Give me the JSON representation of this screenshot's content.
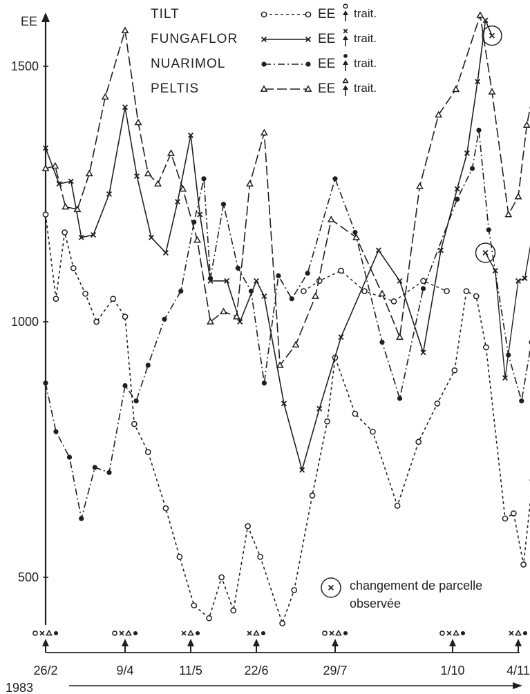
{
  "chart_data": {
    "type": "line",
    "ylabel": "EE",
    "year_label": "1983",
    "yticks": [
      500,
      1000,
      1500
    ],
    "ylim": [
      400,
      1600
    ],
    "x_categories": [
      "26/2",
      "9/4",
      "11/5",
      "22/6",
      "29/7",
      "1/10",
      "4/11"
    ],
    "legend": {
      "ee_label": "EE",
      "trait_label": "trait."
    },
    "series": [
      {
        "name": "TILT",
        "marker": "circle",
        "dash": "4 4",
        "values": [
          {
            "x": 0.0,
            "y": 1210
          },
          {
            "x": 0.13,
            "y": 1045
          },
          {
            "x": 0.24,
            "y": 1175
          },
          {
            "x": 0.35,
            "y": 1105
          },
          {
            "x": 0.5,
            "y": 1055
          },
          {
            "x": 0.64,
            "y": 1000
          },
          {
            "x": 0.85,
            "y": 1045
          },
          {
            "x": 1.0,
            "y": 1010
          },
          {
            "x": 1.14,
            "y": 800
          },
          {
            "x": 1.35,
            "y": 745
          },
          {
            "x": 1.62,
            "y": 635
          },
          {
            "x": 1.83,
            "y": 540
          },
          {
            "x": 2.05,
            "y": 445
          },
          {
            "x": 2.28,
            "y": 420
          },
          {
            "x": 2.47,
            "y": 500
          },
          {
            "x": 2.65,
            "y": 435
          },
          {
            "x": 2.87,
            "y": 600
          },
          {
            "x": 3.05,
            "y": 540
          },
          {
            "x": 3.33,
            "y": 410
          },
          {
            "x": 3.48,
            "y": 475
          },
          {
            "x": 3.71,
            "y": 660
          },
          {
            "x": 3.9,
            "y": 805
          },
          {
            "x": 4.0,
            "y": 930
          },
          {
            "x": 4.17,
            "y": 820
          },
          {
            "x": 4.32,
            "y": 785
          },
          {
            "x": 4.53,
            "y": 640
          },
          {
            "x": 4.71,
            "y": 765
          },
          {
            "x": 4.87,
            "y": 840
          },
          {
            "x": 5.03,
            "y": 905
          },
          {
            "x": 5.21,
            "y": 1060
          },
          {
            "x": 5.36,
            "y": 1050
          },
          {
            "x": 5.51,
            "y": 950
          },
          {
            "x": 5.8,
            "y": 615
          },
          {
            "x": 5.93,
            "y": 625
          },
          {
            "x": 6.08,
            "y": 525
          },
          {
            "x": 6.22,
            "y": 690
          }
        ],
        "extra_values": [
          {
            "x": 3.6,
            "y": 1060
          },
          {
            "x": 3.8,
            "y": 1080
          },
          {
            "x": 4.05,
            "y": 1100
          },
          {
            "x": 4.25,
            "y": 1060
          },
          {
            "x": 4.5,
            "y": 1040
          },
          {
            "x": 4.75,
            "y": 1080
          },
          {
            "x": 4.95,
            "y": 1060
          }
        ]
      },
      {
        "name": "FUNGAFLOR",
        "marker": "cross",
        "dash": "",
        "values": [
          {
            "x": 0.0,
            "y": 1340
          },
          {
            "x": 0.17,
            "y": 1270
          },
          {
            "x": 0.32,
            "y": 1275
          },
          {
            "x": 0.45,
            "y": 1165
          },
          {
            "x": 0.6,
            "y": 1170
          },
          {
            "x": 0.8,
            "y": 1250
          },
          {
            "x": 1.0,
            "y": 1420
          },
          {
            "x": 1.18,
            "y": 1285
          },
          {
            "x": 1.4,
            "y": 1165
          },
          {
            "x": 1.62,
            "y": 1135
          },
          {
            "x": 1.8,
            "y": 1235
          },
          {
            "x": 2.0,
            "y": 1365
          },
          {
            "x": 2.14,
            "y": 1210
          },
          {
            "x": 2.3,
            "y": 1080
          },
          {
            "x": 2.55,
            "y": 1080
          },
          {
            "x": 2.75,
            "y": 1000
          },
          {
            "x": 3.0,
            "y": 1080
          },
          {
            "x": 3.1,
            "y": 1050
          },
          {
            "x": 3.35,
            "y": 840
          },
          {
            "x": 3.58,
            "y": 710
          },
          {
            "x": 3.8,
            "y": 830
          },
          {
            "x": 4.05,
            "y": 970
          },
          {
            "x": 4.37,
            "y": 1140
          },
          {
            "x": 4.55,
            "y": 1080
          },
          {
            "x": 4.75,
            "y": 940
          },
          {
            "x": 4.9,
            "y": 1140
          },
          {
            "x": 5.07,
            "y": 1260
          },
          {
            "x": 5.22,
            "y": 1330
          },
          {
            "x": 5.38,
            "y": 1470
          },
          {
            "x": 5.5,
            "y": 1590
          },
          {
            "x": 5.6,
            "y": 1560
          }
        ],
        "extra_values": [
          {
            "x": 5.5,
            "y": 1135
          },
          {
            "x": 5.65,
            "y": 1100
          },
          {
            "x": 5.8,
            "y": 890
          },
          {
            "x": 6.0,
            "y": 1080
          },
          {
            "x": 6.1,
            "y": 1085
          },
          {
            "x": 6.22,
            "y": 1175
          }
        ]
      },
      {
        "name": "NUARIMOL",
        "marker": "dot",
        "dash": "10 4 2 4",
        "values": [
          {
            "x": 0.0,
            "y": 880
          },
          {
            "x": 0.13,
            "y": 785
          },
          {
            "x": 0.3,
            "y": 735
          },
          {
            "x": 0.45,
            "y": 615
          },
          {
            "x": 0.62,
            "y": 715
          },
          {
            "x": 0.8,
            "y": 705
          },
          {
            "x": 1.0,
            "y": 875
          },
          {
            "x": 1.17,
            "y": 845
          },
          {
            "x": 1.35,
            "y": 915
          },
          {
            "x": 1.6,
            "y": 1005
          },
          {
            "x": 1.85,
            "y": 1060
          },
          {
            "x": 2.05,
            "y": 1195
          },
          {
            "x": 2.2,
            "y": 1280
          },
          {
            "x": 2.3,
            "y": 1085
          },
          {
            "x": 2.5,
            "y": 1230
          },
          {
            "x": 2.72,
            "y": 1105
          },
          {
            "x": 2.92,
            "y": 1060
          },
          {
            "x": 3.1,
            "y": 880
          },
          {
            "x": 3.28,
            "y": 1090
          },
          {
            "x": 3.45,
            "y": 1045
          },
          {
            "x": 3.65,
            "y": 1095
          },
          {
            "x": 4.0,
            "y": 1280
          },
          {
            "x": 4.17,
            "y": 1175
          },
          {
            "x": 4.4,
            "y": 960
          },
          {
            "x": 4.55,
            "y": 850
          },
          {
            "x": 4.75,
            "y": 1065
          },
          {
            "x": 5.07,
            "y": 1240
          },
          {
            "x": 5.3,
            "y": 1300
          },
          {
            "x": 5.4,
            "y": 1375
          },
          {
            "x": 5.55,
            "y": 1180
          },
          {
            "x": 5.85,
            "y": 935
          },
          {
            "x": 6.05,
            "y": 845
          },
          {
            "x": 6.2,
            "y": 960
          },
          {
            "x": 6.35,
            "y": 945
          }
        ]
      },
      {
        "name": "PELTIS",
        "marker": "triangle",
        "dash": "14 5",
        "values": [
          {
            "x": 0.0,
            "y": 1300
          },
          {
            "x": 0.12,
            "y": 1305
          },
          {
            "x": 0.25,
            "y": 1225
          },
          {
            "x": 0.4,
            "y": 1220
          },
          {
            "x": 0.55,
            "y": 1290
          },
          {
            "x": 0.75,
            "y": 1440
          },
          {
            "x": 1.0,
            "y": 1570
          },
          {
            "x": 1.2,
            "y": 1390
          },
          {
            "x": 1.35,
            "y": 1290
          },
          {
            "x": 1.5,
            "y": 1270
          },
          {
            "x": 1.7,
            "y": 1330
          },
          {
            "x": 1.88,
            "y": 1260
          },
          {
            "x": 2.1,
            "y": 1160
          },
          {
            "x": 2.3,
            "y": 1000
          },
          {
            "x": 2.5,
            "y": 1020
          },
          {
            "x": 2.7,
            "y": 1010
          },
          {
            "x": 2.9,
            "y": 1270
          },
          {
            "x": 3.1,
            "y": 1370
          },
          {
            "x": 3.3,
            "y": 915
          },
          {
            "x": 3.5,
            "y": 955
          },
          {
            "x": 3.75,
            "y": 1050
          },
          {
            "x": 3.95,
            "y": 1200
          },
          {
            "x": 4.18,
            "y": 1165
          },
          {
            "x": 4.4,
            "y": 1055
          },
          {
            "x": 4.55,
            "y": 970
          },
          {
            "x": 4.72,
            "y": 1265
          },
          {
            "x": 4.88,
            "y": 1405
          },
          {
            "x": 5.05,
            "y": 1455
          },
          {
            "x": 5.42,
            "y": 1600
          },
          {
            "x": 5.6,
            "y": 1450
          },
          {
            "x": 5.85,
            "y": 1210
          },
          {
            "x": 6.0,
            "y": 1245
          },
          {
            "x": 6.13,
            "y": 1385
          },
          {
            "x": 6.25,
            "y": 1465
          }
        ]
      }
    ],
    "treatments": [
      {
        "x": 0.0,
        "markers": [
          "circle",
          "cross",
          "triangle",
          "dot"
        ]
      },
      {
        "x": 1.0,
        "markers": [
          "circle",
          "cross",
          "triangle",
          "dot"
        ]
      },
      {
        "x": 2.0,
        "markers": [
          "cross",
          "triangle",
          "dot"
        ]
      },
      {
        "x": 3.0,
        "markers": [
          "cross",
          "triangle",
          "dot"
        ]
      },
      {
        "x": 4.0,
        "markers": [
          "circle",
          "cross",
          "triangle",
          "dot"
        ]
      },
      {
        "x": 5.0,
        "markers": [
          "circle",
          "cross",
          "triangle",
          "dot"
        ]
      },
      {
        "x": 6.0,
        "markers": [
          "cross",
          "triangle",
          "dot"
        ]
      }
    ],
    "parcel_changes": [
      {
        "series": "FUNGAFLOR",
        "x": 5.6,
        "y": 1560
      },
      {
        "series": "FUNGAFLOR",
        "x": 5.5,
        "y": 1135
      }
    ],
    "annotation": {
      "line1": "changement de parcelle",
      "line2": "observée"
    }
  }
}
